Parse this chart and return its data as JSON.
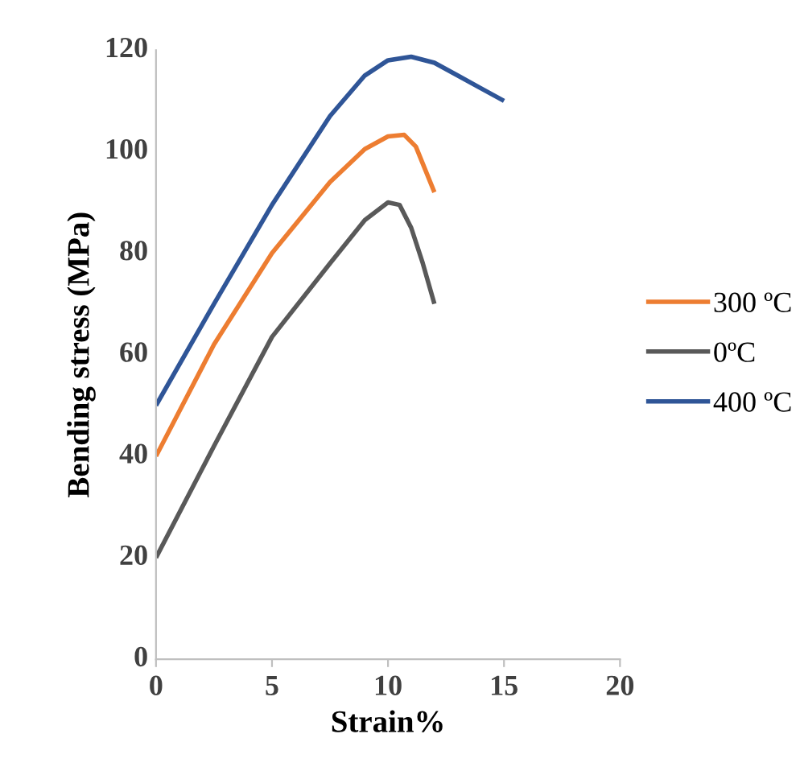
{
  "chart_data": {
    "type": "line",
    "xlabel": "Strain%",
    "ylabel": "Bending stress (MPa)",
    "xlim": [
      0,
      20
    ],
    "xticks": [
      0,
      5,
      10,
      15,
      20
    ],
    "ylim": [
      0,
      120
    ],
    "yticks": [
      0,
      20,
      40,
      60,
      80,
      100,
      120
    ],
    "grid": false,
    "legend": "right",
    "marker": "none",
    "line_style": "solid",
    "series": [
      {
        "name": "300 ºC",
        "color": "#ed7d31",
        "x": [
          0,
          2.5,
          5,
          7.5,
          9,
          10,
          10.7,
          11.2,
          12
        ],
        "values": [
          40,
          62,
          80,
          94,
          100.5,
          103,
          103.3,
          101,
          92
        ]
      },
      {
        "name": "0ºC",
        "color": "#595959",
        "x": [
          0,
          2.5,
          5,
          7.5,
          9,
          10,
          10.5,
          11,
          11.5,
          12
        ],
        "values": [
          20,
          42,
          63.5,
          78,
          86.5,
          90,
          89.5,
          85,
          78,
          70
        ]
      },
      {
        "name": "400 ºC",
        "color": "#2f5597",
        "x": [
          0,
          2.5,
          5,
          7.5,
          9,
          10,
          11,
          12,
          13,
          14,
          15
        ],
        "values": [
          50,
          70,
          89.5,
          107,
          115,
          118,
          118.7,
          117.5,
          115,
          112.5,
          110
        ]
      }
    ]
  }
}
